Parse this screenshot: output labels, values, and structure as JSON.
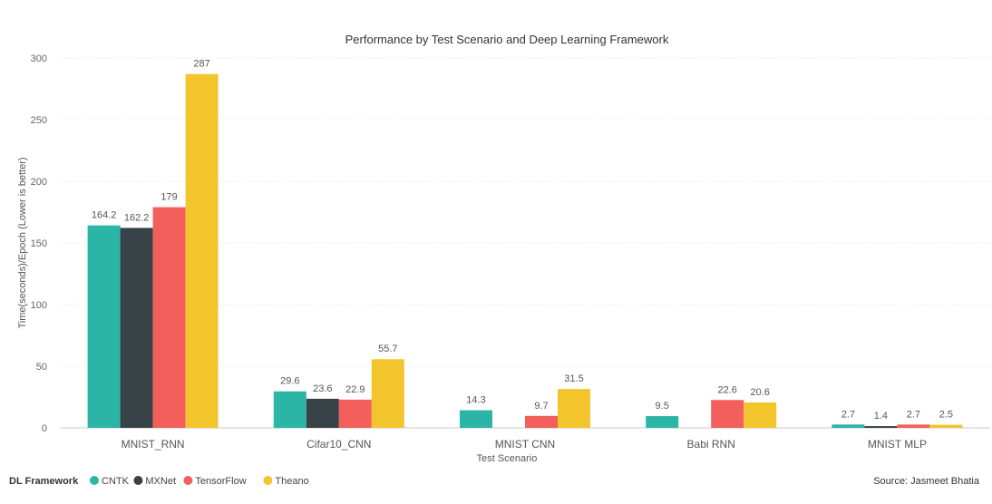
{
  "chart_data": {
    "type": "bar",
    "title": "Performance by Test Scenario and Deep Learning Framework",
    "xlabel": "Test Scenario",
    "ylabel": "Time(seconds)/Epoch (Lower is better)",
    "ylim": [
      0,
      300
    ],
    "yticks": [
      0,
      50,
      100,
      150,
      200,
      250,
      300
    ],
    "grid": true,
    "legend_position": "bottom-left",
    "legend_title": "DL Framework",
    "categories": [
      "MNIST_RNN",
      "Cifar10_CNN",
      "MNIST CNN",
      "Babi RNN",
      "MNIST MLP"
    ],
    "series": [
      {
        "name": "CNTK",
        "color": "#2bb5a7",
        "values": [
          164.2,
          29.6,
          14.3,
          9.5,
          2.7
        ]
      },
      {
        "name": "MXNet",
        "color": "#374346",
        "values": [
          162.2,
          23.6,
          null,
          null,
          1.4
        ]
      },
      {
        "name": "TensorFlow",
        "color": "#f25f5c",
        "values": [
          179,
          22.9,
          9.7,
          22.6,
          2.7
        ]
      },
      {
        "name": "Theano",
        "color": "#f2c52d",
        "values": [
          287,
          55.7,
          31.5,
          20.6,
          2.5
        ]
      }
    ],
    "source": "Source: Jasmeet Bhatia"
  }
}
